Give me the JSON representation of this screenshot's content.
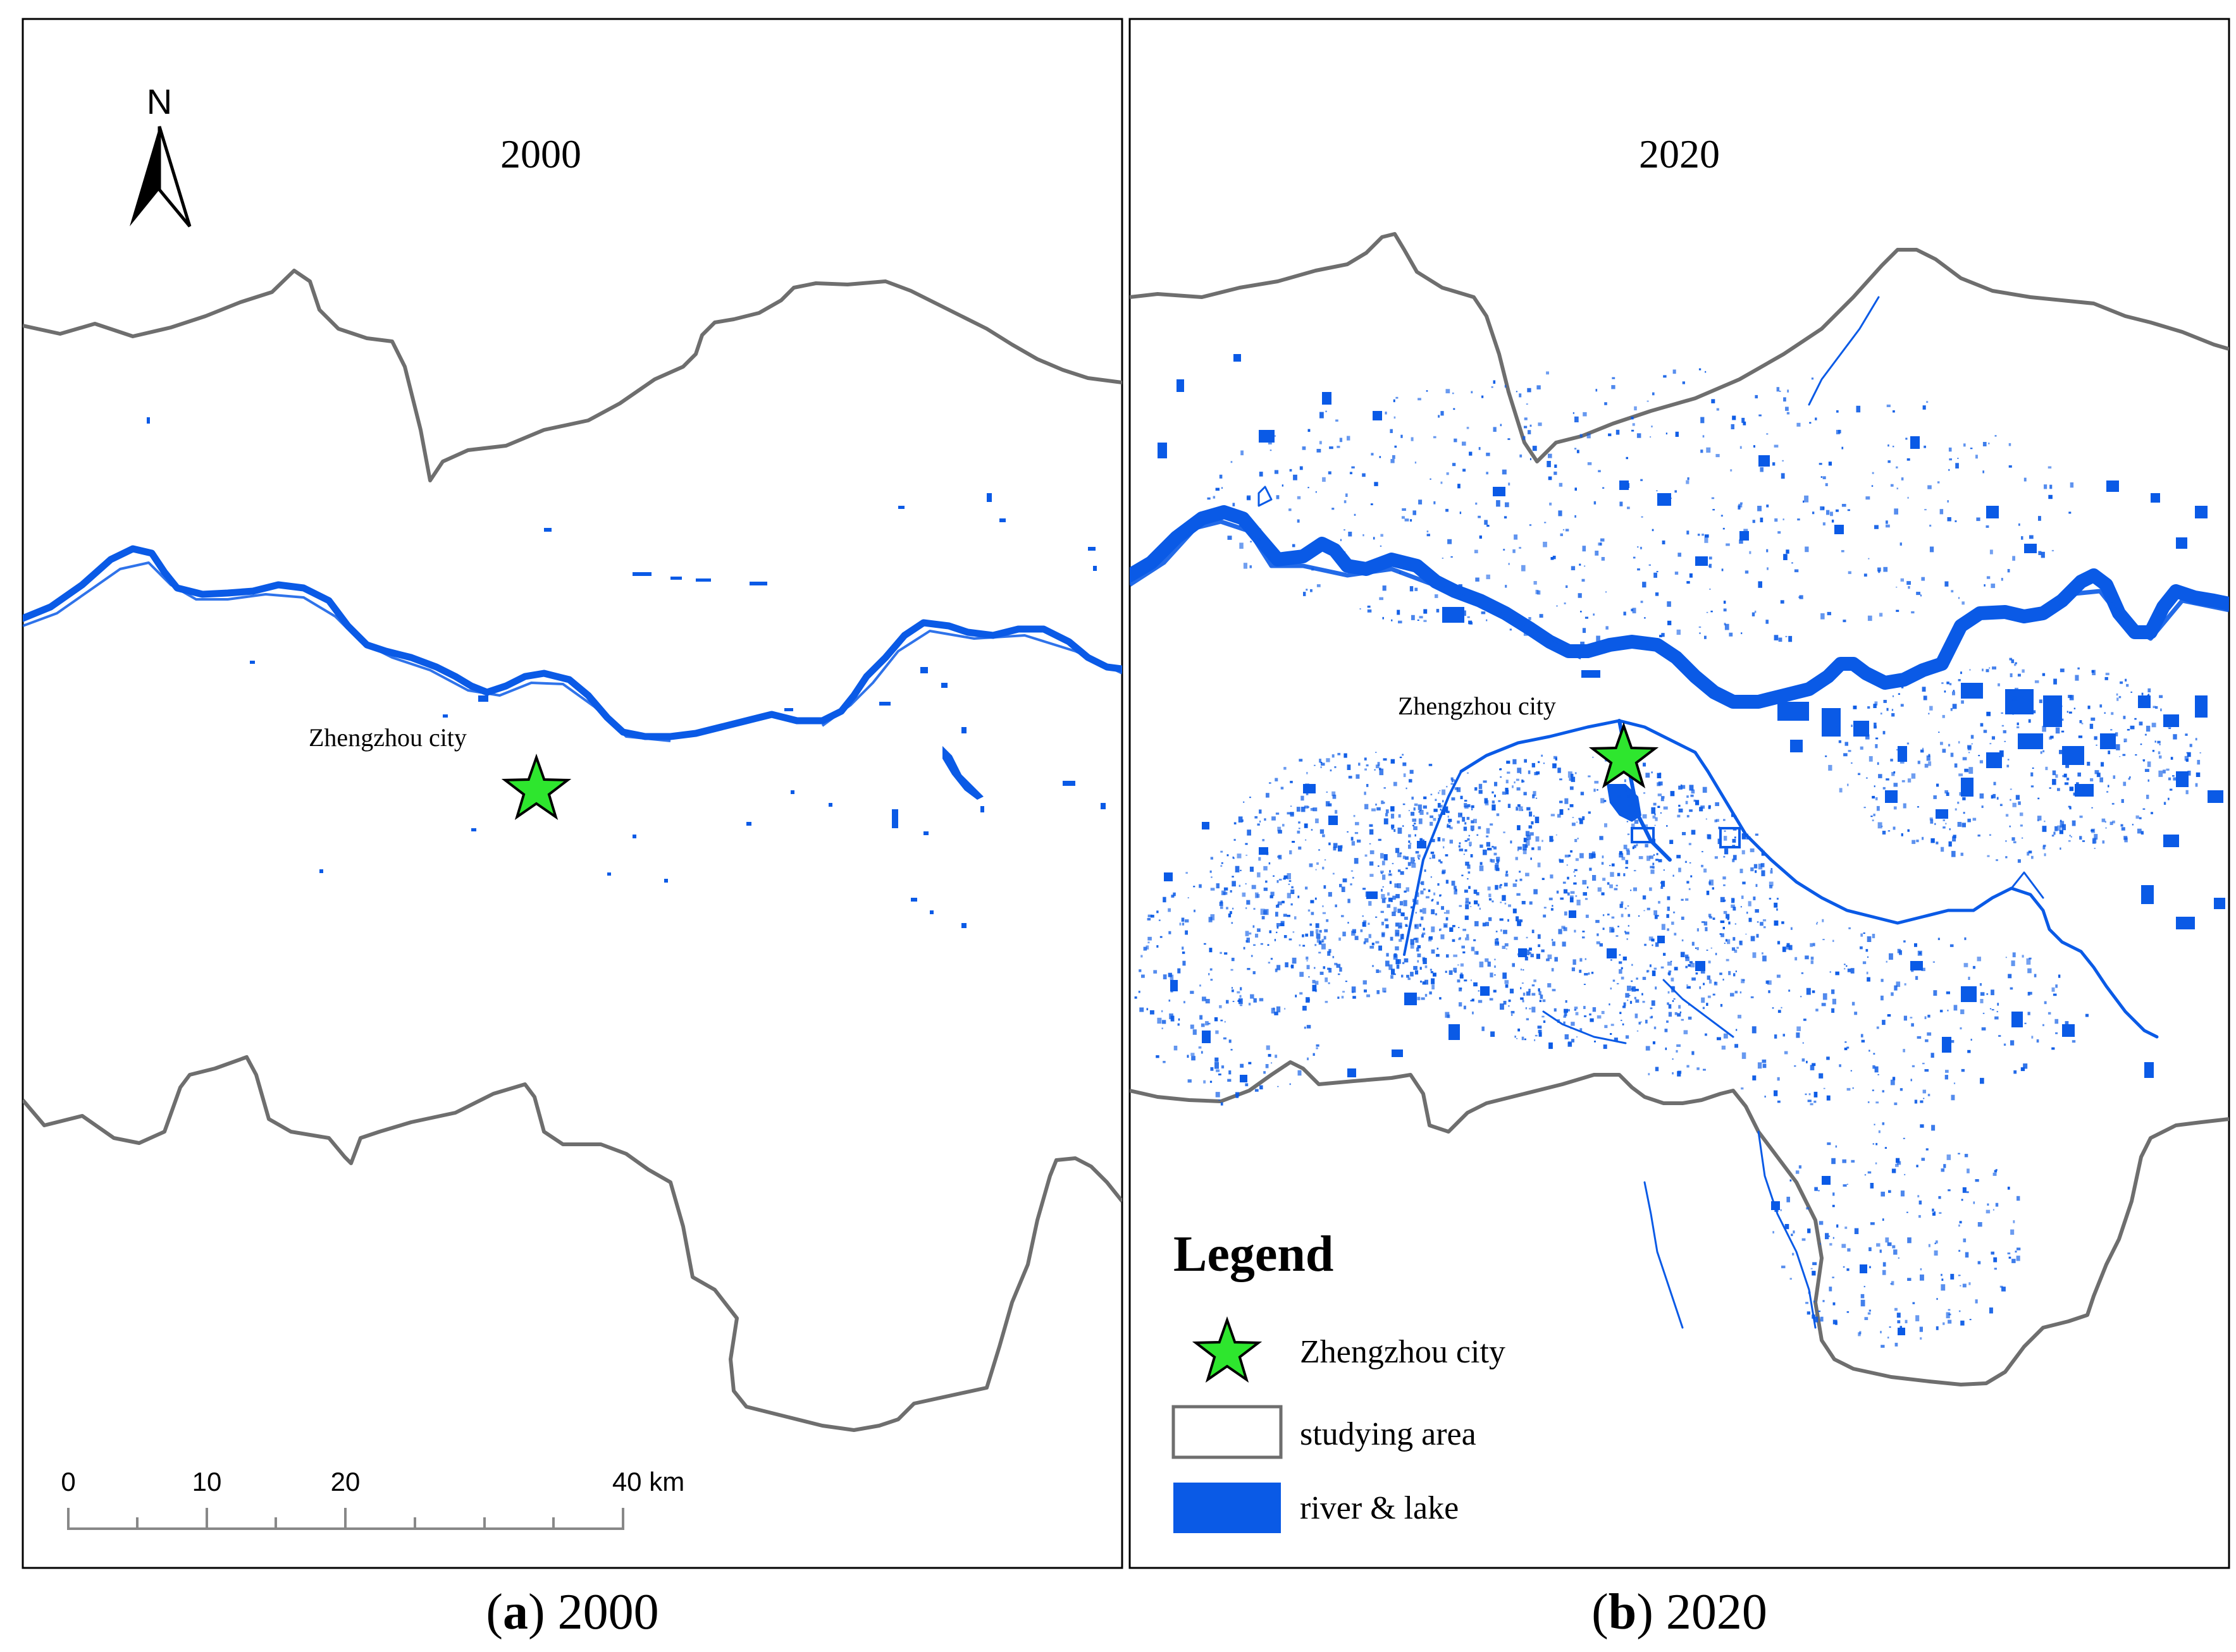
{
  "panels": [
    {
      "year_title": "2000",
      "caption_letter": "a",
      "caption_year": "2000",
      "city_label": "Zhengzhou city"
    },
    {
      "year_title": "2020",
      "caption_letter": "b",
      "caption_year": "2020",
      "city_label": "Zhengzhou city"
    }
  ],
  "north_arrow": {
    "label": "N"
  },
  "scale_bar": {
    "tick_labels": [
      "0",
      "10",
      "20",
      "40 km"
    ]
  },
  "legend": {
    "title": "Legend",
    "items": [
      {
        "label": "Zhengzhou city",
        "symbol": "green-star"
      },
      {
        "label": "studying area",
        "symbol": "white-box-gray-outline"
      },
      {
        "label": "river & lake",
        "symbol": "blue-box"
      }
    ]
  },
  "colors": {
    "water": "#0a5ae6",
    "boundary": "#6e6e6e",
    "star_fill": "#2ee62e",
    "frame": "#000000"
  },
  "caption_punctuation": {
    "open": "(",
    "close": ")"
  }
}
